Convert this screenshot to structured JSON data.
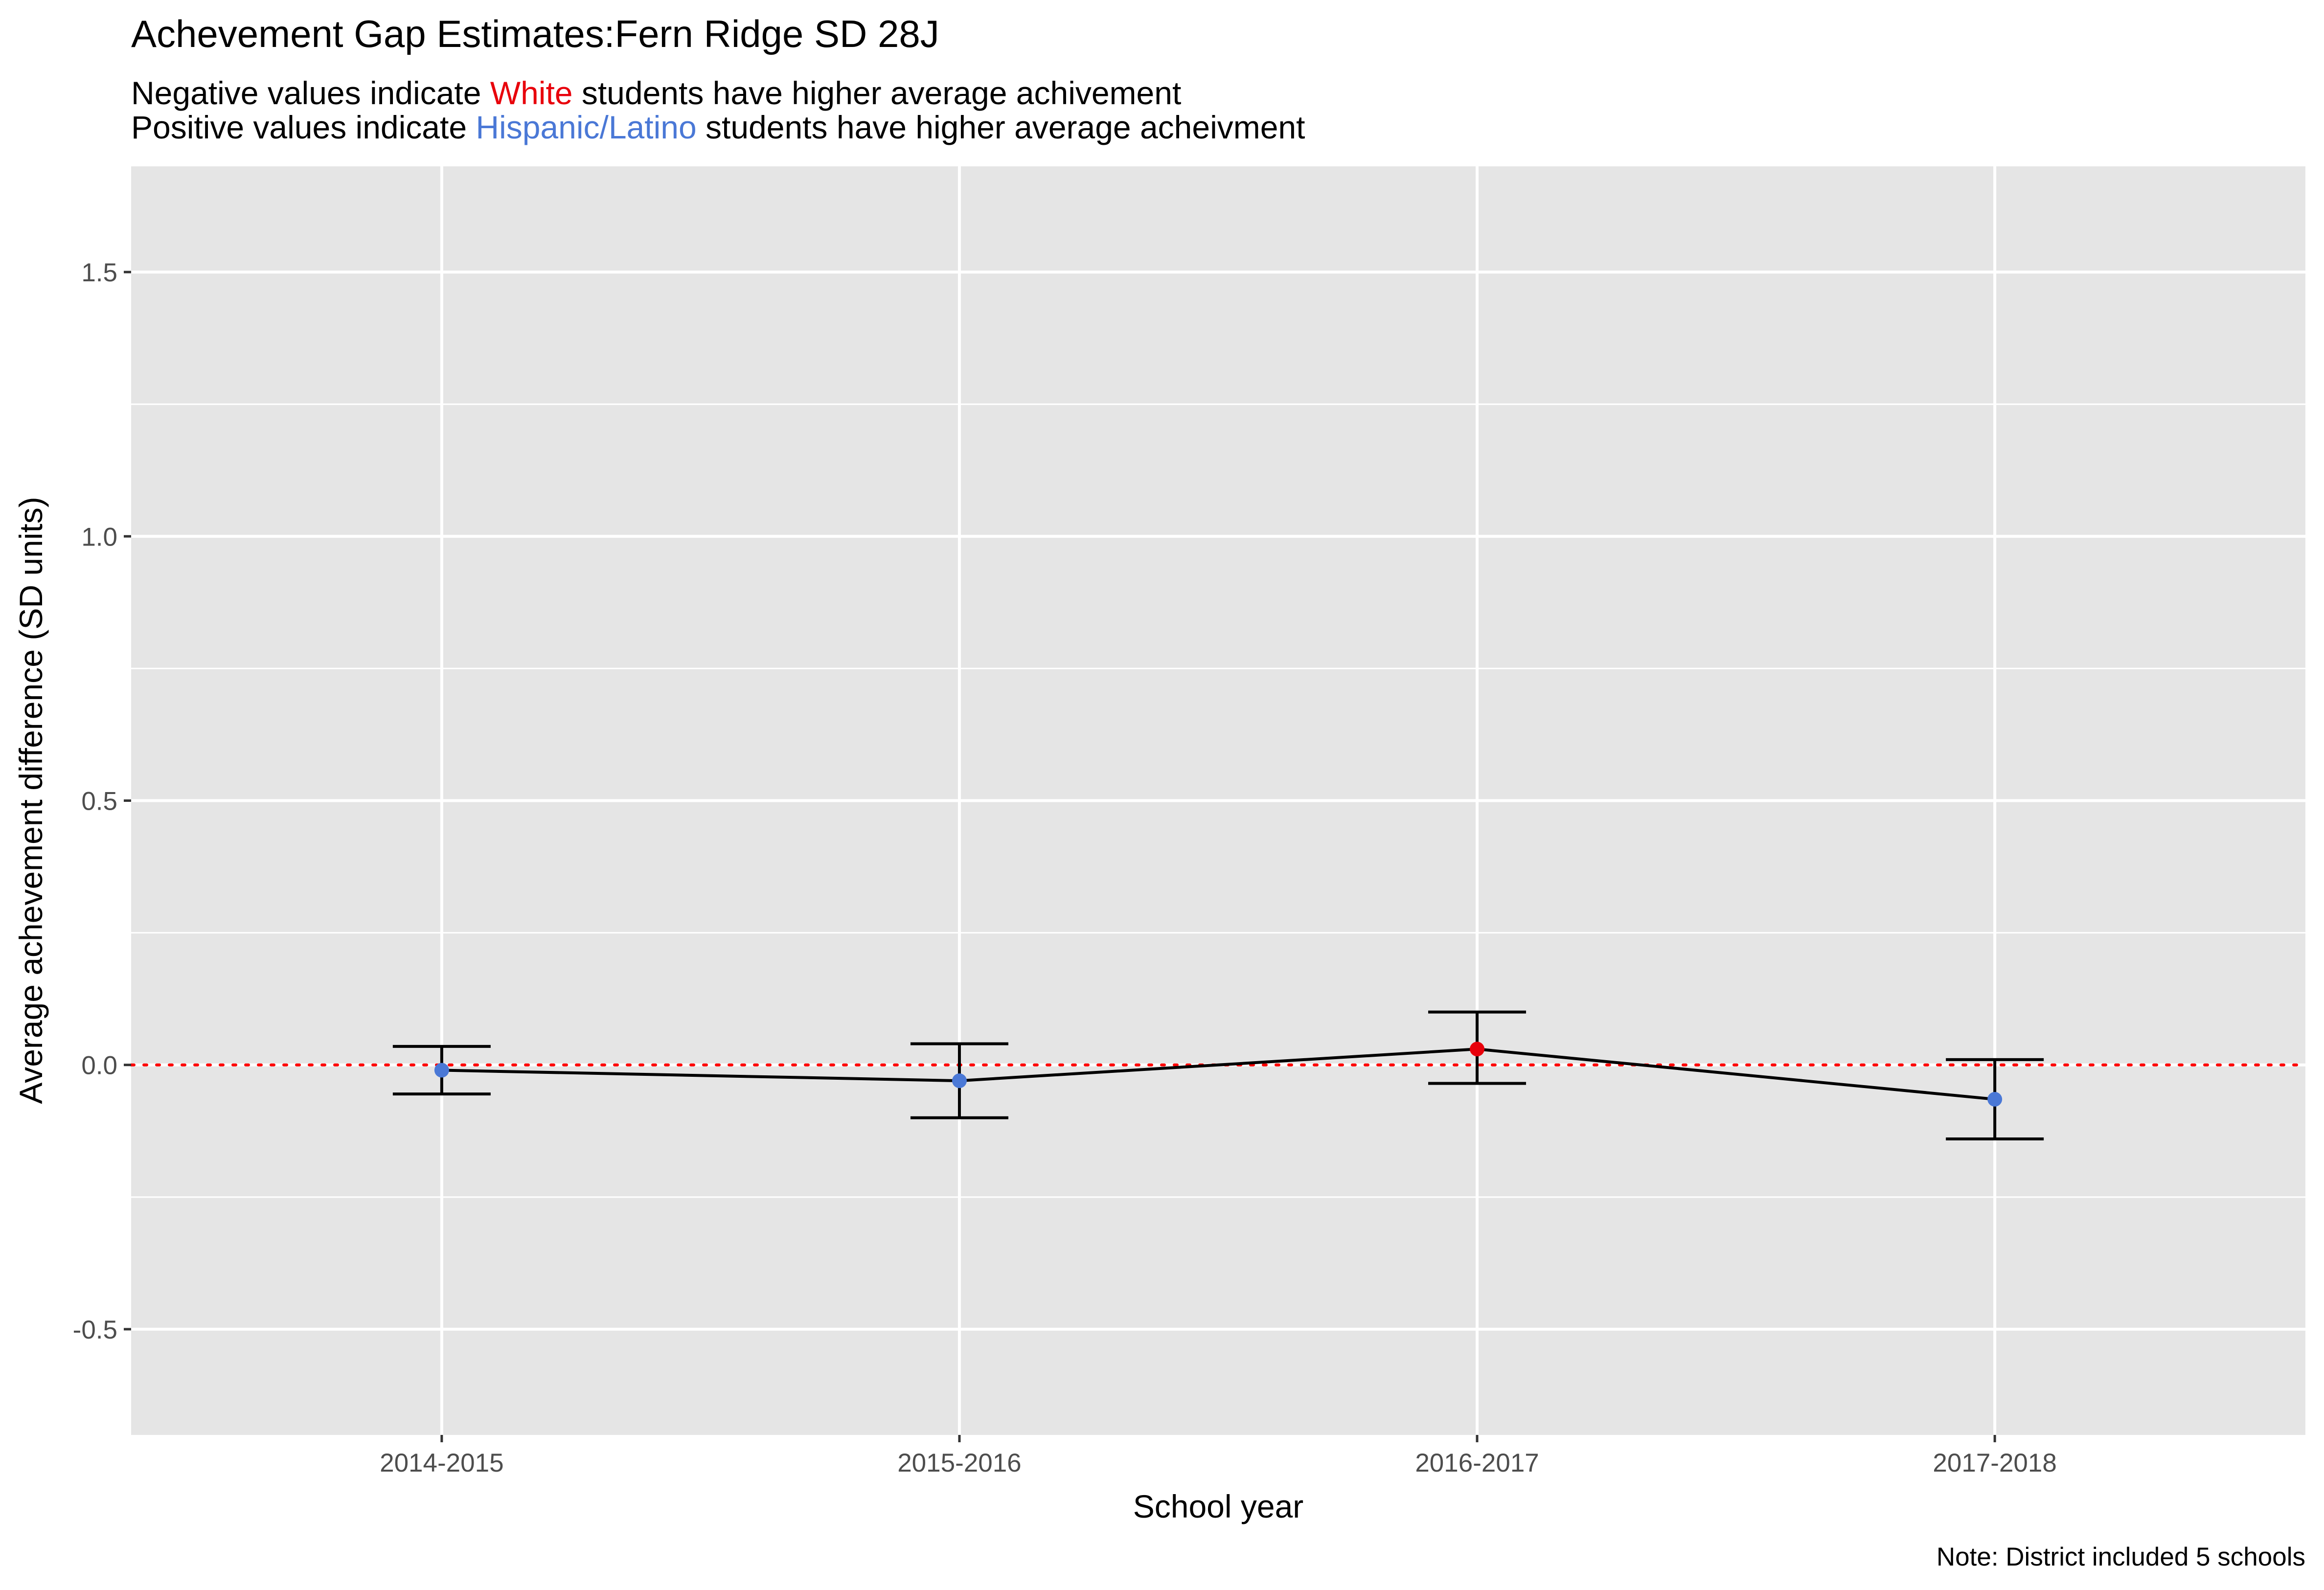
{
  "chart_data": {
    "type": "line",
    "title": "Achevement Gap Estimates:Fern Ridge SD 28J",
    "subtitle_line1": {
      "before": "Negative values indicate ",
      "highlight": "White",
      "after": " students have higher average achivement"
    },
    "subtitle_line2": {
      "before": "Positive values indicate ",
      "highlight": "Hispanic/Latino",
      "after": " students have higher average acheivment"
    },
    "xlabel": "School year",
    "ylabel": "Average achevement difference (SD units)",
    "caption": "Note: District included 5 schools",
    "categories": [
      "2014-2015",
      "2015-2016",
      "2016-2017",
      "2017-2018"
    ],
    "series": [
      {
        "values": [
          -0.01,
          -0.03,
          0.03,
          -0.065
        ],
        "lower": [
          -0.055,
          -0.1,
          -0.035,
          -0.14
        ],
        "upper": [
          0.035,
          0.04,
          0.1,
          0.01
        ],
        "point_colors": [
          "#4a78d6",
          "#4a78d6",
          "#e8000b",
          "#4a78d6"
        ],
        "line_color": "#000000"
      }
    ],
    "yticks": [
      -0.5,
      0.0,
      0.5,
      1.0,
      1.5
    ],
    "ytick_labels": [
      "-0.5",
      "0.0",
      "0.5",
      "1.0",
      "1.5"
    ],
    "ylim": [
      -0.7,
      1.7
    ],
    "reference_line": {
      "y": 0,
      "color": "#ff0000",
      "style": "dotted"
    },
    "grid": true,
    "colors": {
      "panel_background": "#e5e5e5",
      "grid": "#ffffff",
      "white_group": "#e8000b",
      "hispanic_group": "#4a78d6"
    }
  }
}
